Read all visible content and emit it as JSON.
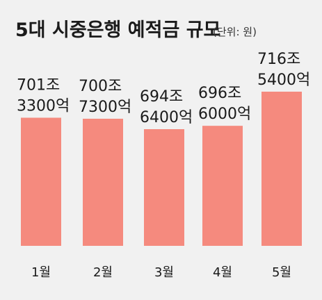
{
  "chart_data": {
    "type": "bar",
    "title": "5대 시중은행 예적금 규모",
    "unit_label": "(단위: 원)",
    "categories": [
      "1월",
      "2월",
      "3월",
      "4월",
      "5월"
    ],
    "values": [
      701.33,
      700.73,
      694.64,
      696.6,
      716.54
    ],
    "value_labels": [
      [
        "701조",
        "3300억"
      ],
      [
        "700조",
        "7300억"
      ],
      [
        "694조",
        "6400억"
      ],
      [
        "696조",
        "6000억"
      ],
      [
        "716조",
        "5400억"
      ]
    ],
    "bar_color": "#f58a7e",
    "grid": false,
    "xlabel": "",
    "ylabel": ""
  }
}
